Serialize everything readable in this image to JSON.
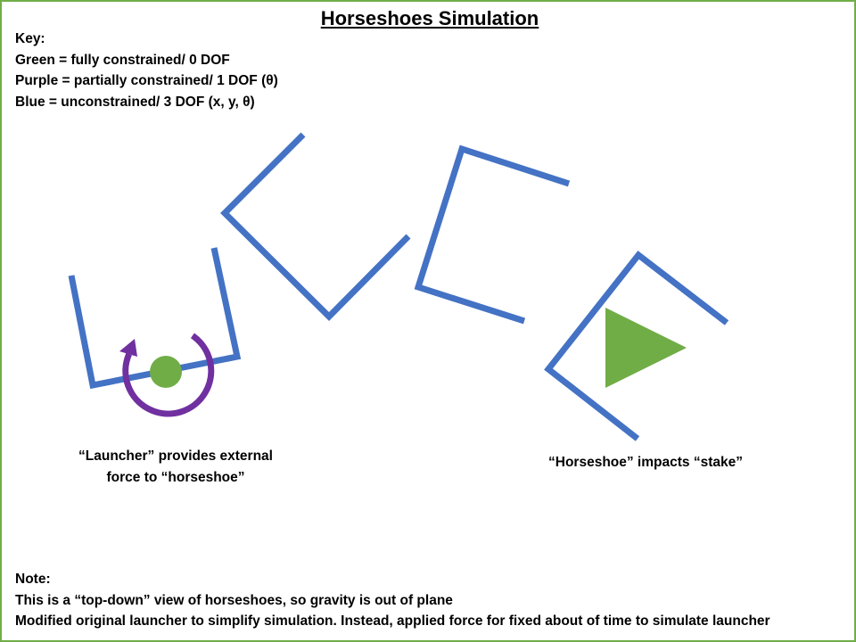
{
  "title": "Horseshoes Simulation",
  "key": {
    "heading": "Key:",
    "green": "Green = fully constrained/ 0 DOF",
    "purple": "Purple  = partially constrained/ 1 DOF (θ)",
    "blue": "Blue = unconstrained/ 3 DOF (x, y, θ)"
  },
  "captions": {
    "launcher_line1": "“Launcher” provides external",
    "launcher_line2": "force to “horseshoe”",
    "impact": "“Horseshoe” impacts “stake”"
  },
  "note": {
    "heading": "Note:",
    "line1": "This is a “top-down” view of horseshoes, so gravity is out of plane",
    "line2": "Modified original launcher to simplify simulation. Instead, applied force for fixed about of time to simulate launcher"
  },
  "colors": {
    "frame": "#70ad47",
    "horseshoe_blue": "#4472c4",
    "constrained_green": "#70ad47",
    "rotation_purple": "#7030a0"
  },
  "icons": {
    "rotation_arrow": "circular-arrow-icon",
    "stake": "triangle-icon",
    "launcher_pivot": "circle-icon"
  }
}
